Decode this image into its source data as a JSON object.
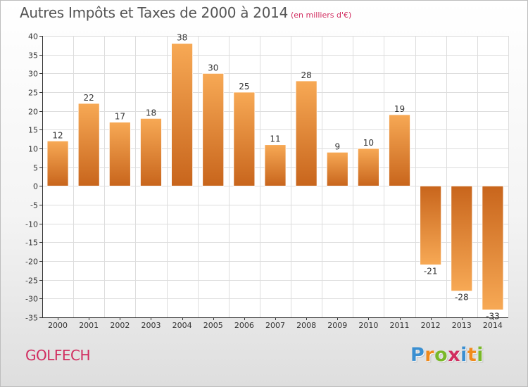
{
  "header": {
    "title": "Autres Impôts et Taxes de 2000 à 2014",
    "subtitle": "(en milliers d'€)"
  },
  "footer": {
    "commune": "GOLFECH",
    "brand_letters": [
      "P",
      "r",
      "o",
      "x",
      "i",
      "t",
      "i"
    ],
    "brand_colors": [
      "#3a8fd1",
      "#f08a1c",
      "#7ab829",
      "#d12c5f",
      "#3a8fd1",
      "#f08a1c",
      "#7ab829"
    ]
  },
  "colors": {
    "bar_light": "#f7a955",
    "bar_dark": "#c8651c",
    "grid": "#dddddd",
    "title_accent": "#d12c5f"
  },
  "chart_data": {
    "type": "bar",
    "title": "Autres Impôts et Taxes de 2000 à 2014",
    "subtitle": "(en milliers d'€)",
    "categories": [
      "2000",
      "2001",
      "2002",
      "2003",
      "2004",
      "2005",
      "2006",
      "2007",
      "2008",
      "2009",
      "2010",
      "2011",
      "2012",
      "2013",
      "2014"
    ],
    "values": [
      12,
      22,
      17,
      18,
      38,
      30,
      25,
      11,
      28,
      9,
      10,
      19,
      -21,
      -28,
      -33
    ],
    "ylim": [
      -35,
      40
    ],
    "yticks": [
      40,
      35,
      30,
      25,
      20,
      15,
      10,
      5,
      0,
      -5,
      -10,
      -15,
      -20,
      -25,
      -30,
      -35
    ],
    "grid": true,
    "data_labels": true
  }
}
